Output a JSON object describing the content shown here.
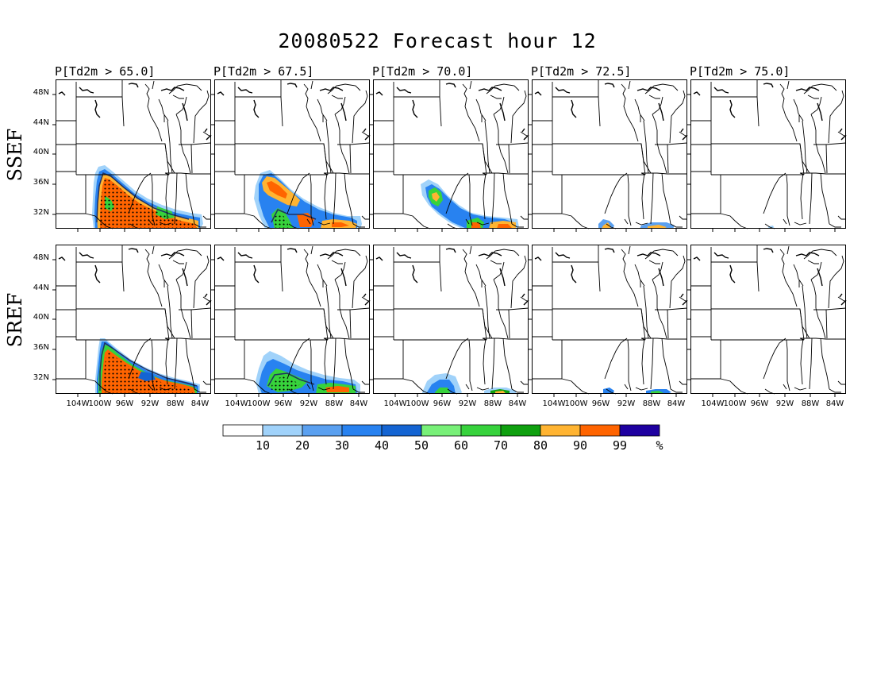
{
  "figure": {
    "title": "20080522 Forecast hour 12",
    "colorbar": {
      "colors": [
        "#ffffff",
        "#a0d2fa",
        "#5aa0f0",
        "#2882f0",
        "#1464d2",
        "#78f078",
        "#37d23c",
        "#0fa00f",
        "#ffb432",
        "#ff6400",
        "#1e00a0"
      ],
      "labels": [
        "10",
        "20",
        "30",
        "40",
        "50",
        "60",
        "70",
        "80",
        "90",
        "99"
      ],
      "unit": "%"
    }
  },
  "panels": {
    "column_titles": [
      "P[Td2m > 65.0]",
      "P[Td2m > 67.5]",
      "P[Td2m > 70.0]",
      "P[Td2m > 72.5]",
      "P[Td2m > 75.0]"
    ],
    "row_labels": [
      "SSEF",
      "SREF"
    ],
    "lat_ticks": [
      "48N",
      "44N",
      "40N",
      "36N",
      "32N"
    ],
    "lon_ticks": [
      "104W",
      "100W",
      "96W",
      "92W",
      "88W",
      "84W"
    ]
  },
  "map_data": {
    "type": "probability-maps",
    "thresholds_F": [
      65.0,
      67.5,
      70.0,
      72.5,
      75.0
    ],
    "lon_range": [
      -107,
      -82
    ],
    "lat_range": [
      29.5,
      49.5
    ]
  }
}
